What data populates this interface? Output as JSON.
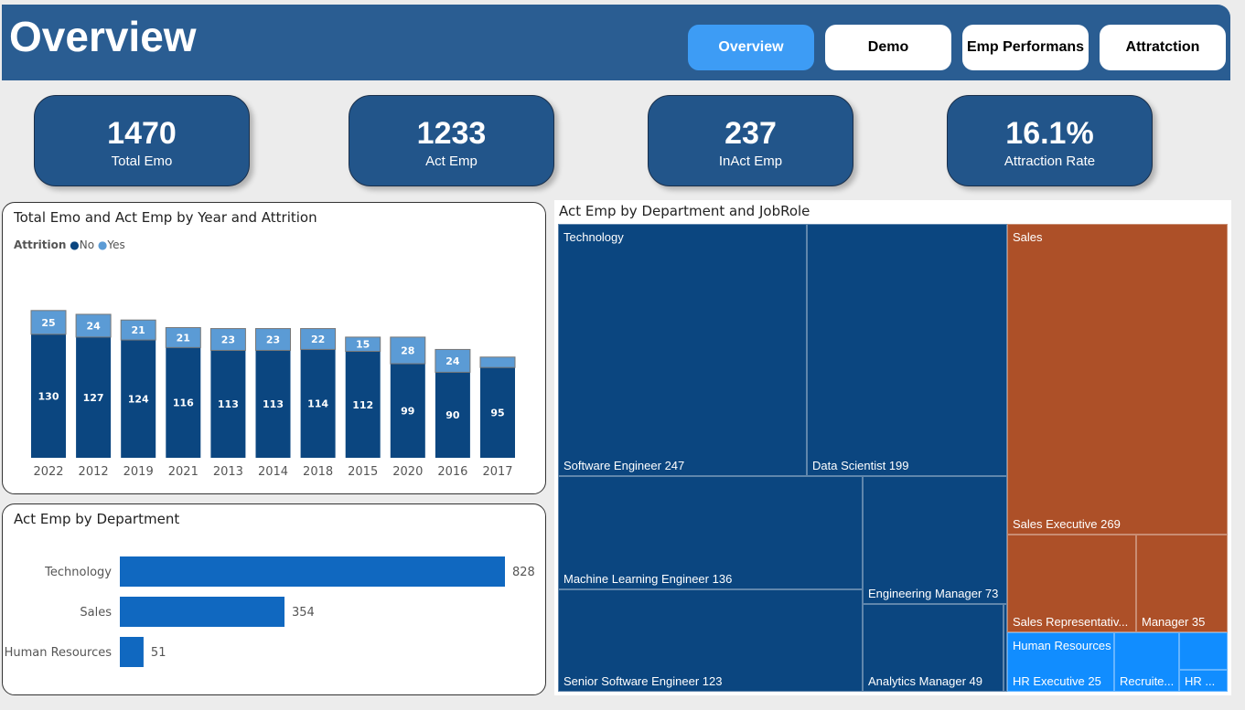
{
  "header": {
    "title": "Overview",
    "nav": [
      "Overview",
      "Demo",
      "Emp Performans",
      "Attratction"
    ],
    "active": 0
  },
  "kpis": [
    {
      "value": "1470",
      "label": "Total Emo"
    },
    {
      "value": "1233",
      "label": "Act Emp"
    },
    {
      "value": "237",
      "label": "InAct Emp"
    },
    {
      "value": "16.1%",
      "label": "Attraction Rate"
    }
  ],
  "chart_data": [
    {
      "type": "bar",
      "stacked": true,
      "title": "Total Emo and Act Emp by Year and Attrition",
      "legend_title": "Attrition",
      "legend": "top-left",
      "categories": [
        "2022",
        "2012",
        "2019",
        "2021",
        "2013",
        "2014",
        "2018",
        "2015",
        "2020",
        "2016",
        "2017"
      ],
      "series": [
        {
          "name": "No",
          "color": "#0b4680",
          "values": [
            130,
            127,
            124,
            116,
            113,
            113,
            114,
            112,
            99,
            90,
            95
          ]
        },
        {
          "name": "Yes",
          "color": "#5b9bd5",
          "values": [
            25,
            24,
            21,
            21,
            23,
            23,
            22,
            15,
            28,
            24,
            11
          ]
        }
      ]
    },
    {
      "type": "bar",
      "orientation": "horizontal",
      "title": "Act Emp by Department",
      "categories": [
        "Technology",
        "Sales",
        "Human Resources"
      ],
      "values": [
        828,
        354,
        51
      ],
      "color": "#1068c0"
    }
  ],
  "treemap": {
    "title": "Act Emp by Department and JobRole",
    "groups": [
      {
        "name": "Technology",
        "color": "#0b4680"
      },
      {
        "name": "Sales",
        "color": "#ad5028"
      },
      {
        "name": "Human Resources",
        "color": "#118dff"
      }
    ],
    "items": [
      "Software Engineer 247",
      "Data Scientist 199",
      "Machine Learning Engineer 136",
      "Engineering Manager 73",
      "Senior Software Engineer 123",
      "Analytics Manager 49",
      "Sales Executive 269",
      "Sales Representativ...",
      "Manager 35",
      "HR Executive 25",
      "Recruite...",
      "HR ..."
    ]
  }
}
